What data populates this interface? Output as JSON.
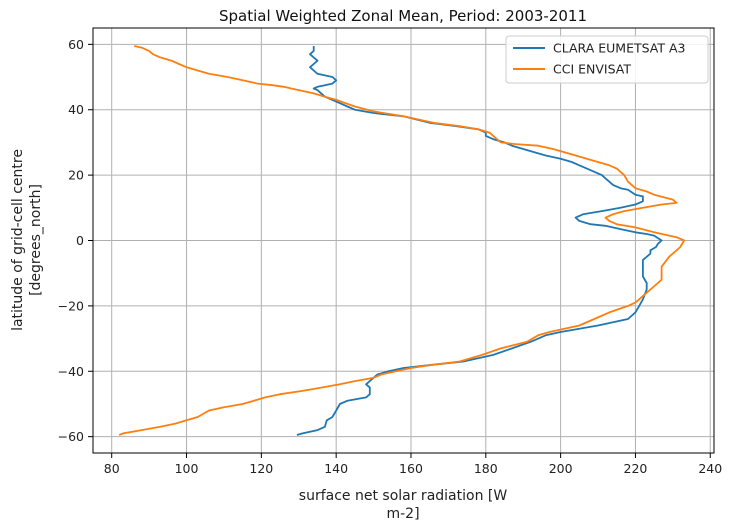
{
  "chart_data": {
    "type": "line",
    "title": "Spatial Weighted Zonal Mean, Period: 2003-2011",
    "xlabel_lines": [
      "surface net solar radiation [W",
      "m-2]"
    ],
    "ylabel_lines": [
      "latitude of grid-cell centre",
      "[degrees_north]"
    ],
    "xlim": [
      75,
      241
    ],
    "ylim": [
      -65,
      65
    ],
    "xticks": [
      80,
      100,
      120,
      140,
      160,
      180,
      200,
      220,
      240
    ],
    "yticks": [
      -60,
      -40,
      -20,
      0,
      20,
      40,
      60
    ],
    "grid": true,
    "legend_position": "upper-right",
    "series": [
      {
        "name": "CLARA EUMETSAT A3",
        "color": "#1f77b4",
        "points": [
          [
            129.5,
            -59.5
          ],
          [
            131,
            -59
          ],
          [
            135,
            -58
          ],
          [
            137,
            -57
          ],
          [
            137.5,
            -55
          ],
          [
            139,
            -54
          ],
          [
            140,
            -52
          ],
          [
            141,
            -50
          ],
          [
            143,
            -49
          ],
          [
            148,
            -48
          ],
          [
            149,
            -47
          ],
          [
            149,
            -45
          ],
          [
            148,
            -44
          ],
          [
            149,
            -43
          ],
          [
            151,
            -41
          ],
          [
            154,
            -40
          ],
          [
            158,
            -39
          ],
          [
            166,
            -38
          ],
          [
            174,
            -37
          ],
          [
            182,
            -35
          ],
          [
            187,
            -33
          ],
          [
            192,
            -31
          ],
          [
            196,
            -29
          ],
          [
            200,
            -28
          ],
          [
            205,
            -27
          ],
          [
            210,
            -26
          ],
          [
            214,
            -25
          ],
          [
            218,
            -24
          ],
          [
            220,
            -22
          ],
          [
            221,
            -20
          ],
          [
            222,
            -18
          ],
          [
            223,
            -15
          ],
          [
            223,
            -13
          ],
          [
            222,
            -11
          ],
          [
            222,
            -8
          ],
          [
            222,
            -6
          ],
          [
            223,
            -5
          ],
          [
            224,
            -4
          ],
          [
            224,
            -3
          ],
          [
            225.5,
            -2
          ],
          [
            226,
            -1
          ],
          [
            227,
            0
          ],
          [
            225,
            1.5
          ],
          [
            223,
            2
          ],
          [
            220,
            2.5
          ],
          [
            216,
            3.5
          ],
          [
            212,
            4.5
          ],
          [
            208,
            5
          ],
          [
            205,
            6
          ],
          [
            204,
            7
          ],
          [
            206,
            8
          ],
          [
            211,
            9
          ],
          [
            216,
            10
          ],
          [
            220,
            11
          ],
          [
            222,
            12
          ],
          [
            222,
            13.5
          ],
          [
            220,
            14
          ],
          [
            218,
            15.5
          ],
          [
            216,
            16
          ],
          [
            214,
            17
          ],
          [
            213,
            18
          ],
          [
            212,
            19
          ],
          [
            211,
            20
          ],
          [
            209,
            21
          ],
          [
            207,
            22
          ],
          [
            205,
            23
          ],
          [
            203,
            24
          ],
          [
            200,
            25
          ],
          [
            196,
            26
          ],
          [
            193,
            27
          ],
          [
            190,
            28
          ],
          [
            187,
            29
          ],
          [
            185,
            30
          ],
          [
            182,
            31
          ],
          [
            180,
            32
          ],
          [
            180,
            33
          ],
          [
            178,
            34
          ],
          [
            172,
            35
          ],
          [
            165,
            36
          ],
          [
            158,
            38
          ],
          [
            150,
            39
          ],
          [
            145,
            40
          ],
          [
            143,
            41
          ],
          [
            141,
            42
          ],
          [
            139,
            43
          ],
          [
            137,
            44
          ],
          [
            136,
            45
          ],
          [
            135,
            46
          ],
          [
            134,
            46.5
          ],
          [
            135,
            47
          ],
          [
            137,
            47.5
          ],
          [
            139,
            48
          ],
          [
            140,
            49
          ],
          [
            139,
            50
          ],
          [
            137,
            50.5
          ],
          [
            135,
            51
          ],
          [
            134,
            52
          ],
          [
            133,
            53
          ],
          [
            134,
            54
          ],
          [
            135,
            55
          ],
          [
            134,
            56
          ],
          [
            133,
            57
          ],
          [
            134,
            58
          ],
          [
            134,
            59.5
          ]
        ]
      },
      {
        "name": "CCI ENVISAT",
        "color": "#ff7f0e",
        "points": [
          [
            82,
            -59.5
          ],
          [
            83,
            -59
          ],
          [
            88,
            -58
          ],
          [
            93,
            -57
          ],
          [
            97,
            -56
          ],
          [
            100,
            -55
          ],
          [
            103,
            -54
          ],
          [
            106,
            -52
          ],
          [
            110,
            -51
          ],
          [
            115,
            -50
          ],
          [
            118,
            -49
          ],
          [
            121,
            -48
          ],
          [
            125,
            -47
          ],
          [
            131,
            -46
          ],
          [
            136,
            -45
          ],
          [
            141,
            -44
          ],
          [
            145,
            -43
          ],
          [
            150,
            -42
          ],
          [
            152,
            -41
          ],
          [
            156,
            -40
          ],
          [
            160,
            -39
          ],
          [
            166,
            -38
          ],
          [
            173,
            -37
          ],
          [
            179,
            -35
          ],
          [
            184,
            -33
          ],
          [
            191,
            -31
          ],
          [
            194,
            -29
          ],
          [
            197,
            -28
          ],
          [
            201,
            -27
          ],
          [
            205,
            -26
          ],
          [
            209,
            -24
          ],
          [
            213,
            -22
          ],
          [
            218,
            -20
          ],
          [
            220,
            -19
          ],
          [
            222,
            -17
          ],
          [
            224,
            -15
          ],
          [
            226,
            -13
          ],
          [
            227,
            -12
          ],
          [
            227,
            -10
          ],
          [
            227,
            -8
          ],
          [
            229,
            -5
          ],
          [
            231,
            -3
          ],
          [
            232,
            -2
          ],
          [
            233,
            0
          ],
          [
            231,
            1
          ],
          [
            225,
            2.5
          ],
          [
            220,
            4
          ],
          [
            215,
            5
          ],
          [
            213,
            6
          ],
          [
            212,
            7
          ],
          [
            214,
            8
          ],
          [
            217,
            9
          ],
          [
            222,
            10
          ],
          [
            227,
            11
          ],
          [
            231,
            11.5
          ],
          [
            230,
            12.5
          ],
          [
            225,
            14
          ],
          [
            223,
            15
          ],
          [
            220,
            16
          ],
          [
            219,
            17
          ],
          [
            218,
            18
          ],
          [
            217,
            20
          ],
          [
            215,
            22
          ],
          [
            213,
            23
          ],
          [
            210,
            24
          ],
          [
            207,
            25
          ],
          [
            204,
            26
          ],
          [
            201,
            27
          ],
          [
            198,
            28
          ],
          [
            194,
            29
          ],
          [
            188,
            29.5
          ],
          [
            184,
            30
          ],
          [
            183,
            31
          ],
          [
            182,
            32
          ],
          [
            181,
            33
          ],
          [
            178,
            34
          ],
          [
            173,
            35
          ],
          [
            166,
            36
          ],
          [
            158,
            38
          ],
          [
            150,
            39.5
          ],
          [
            145,
            41
          ],
          [
            140,
            43
          ],
          [
            137,
            44
          ],
          [
            134,
            45
          ],
          [
            130,
            46
          ],
          [
            128,
            46.5
          ],
          [
            126,
            47
          ],
          [
            123,
            47.5
          ],
          [
            119,
            48
          ],
          [
            117,
            48.5
          ],
          [
            111,
            50
          ],
          [
            106,
            51
          ],
          [
            103,
            52
          ],
          [
            100,
            53
          ],
          [
            98,
            54
          ],
          [
            96,
            55
          ],
          [
            93,
            56
          ],
          [
            91,
            57
          ],
          [
            90,
            58
          ],
          [
            88,
            59
          ],
          [
            86,
            59.5
          ]
        ]
      }
    ]
  }
}
